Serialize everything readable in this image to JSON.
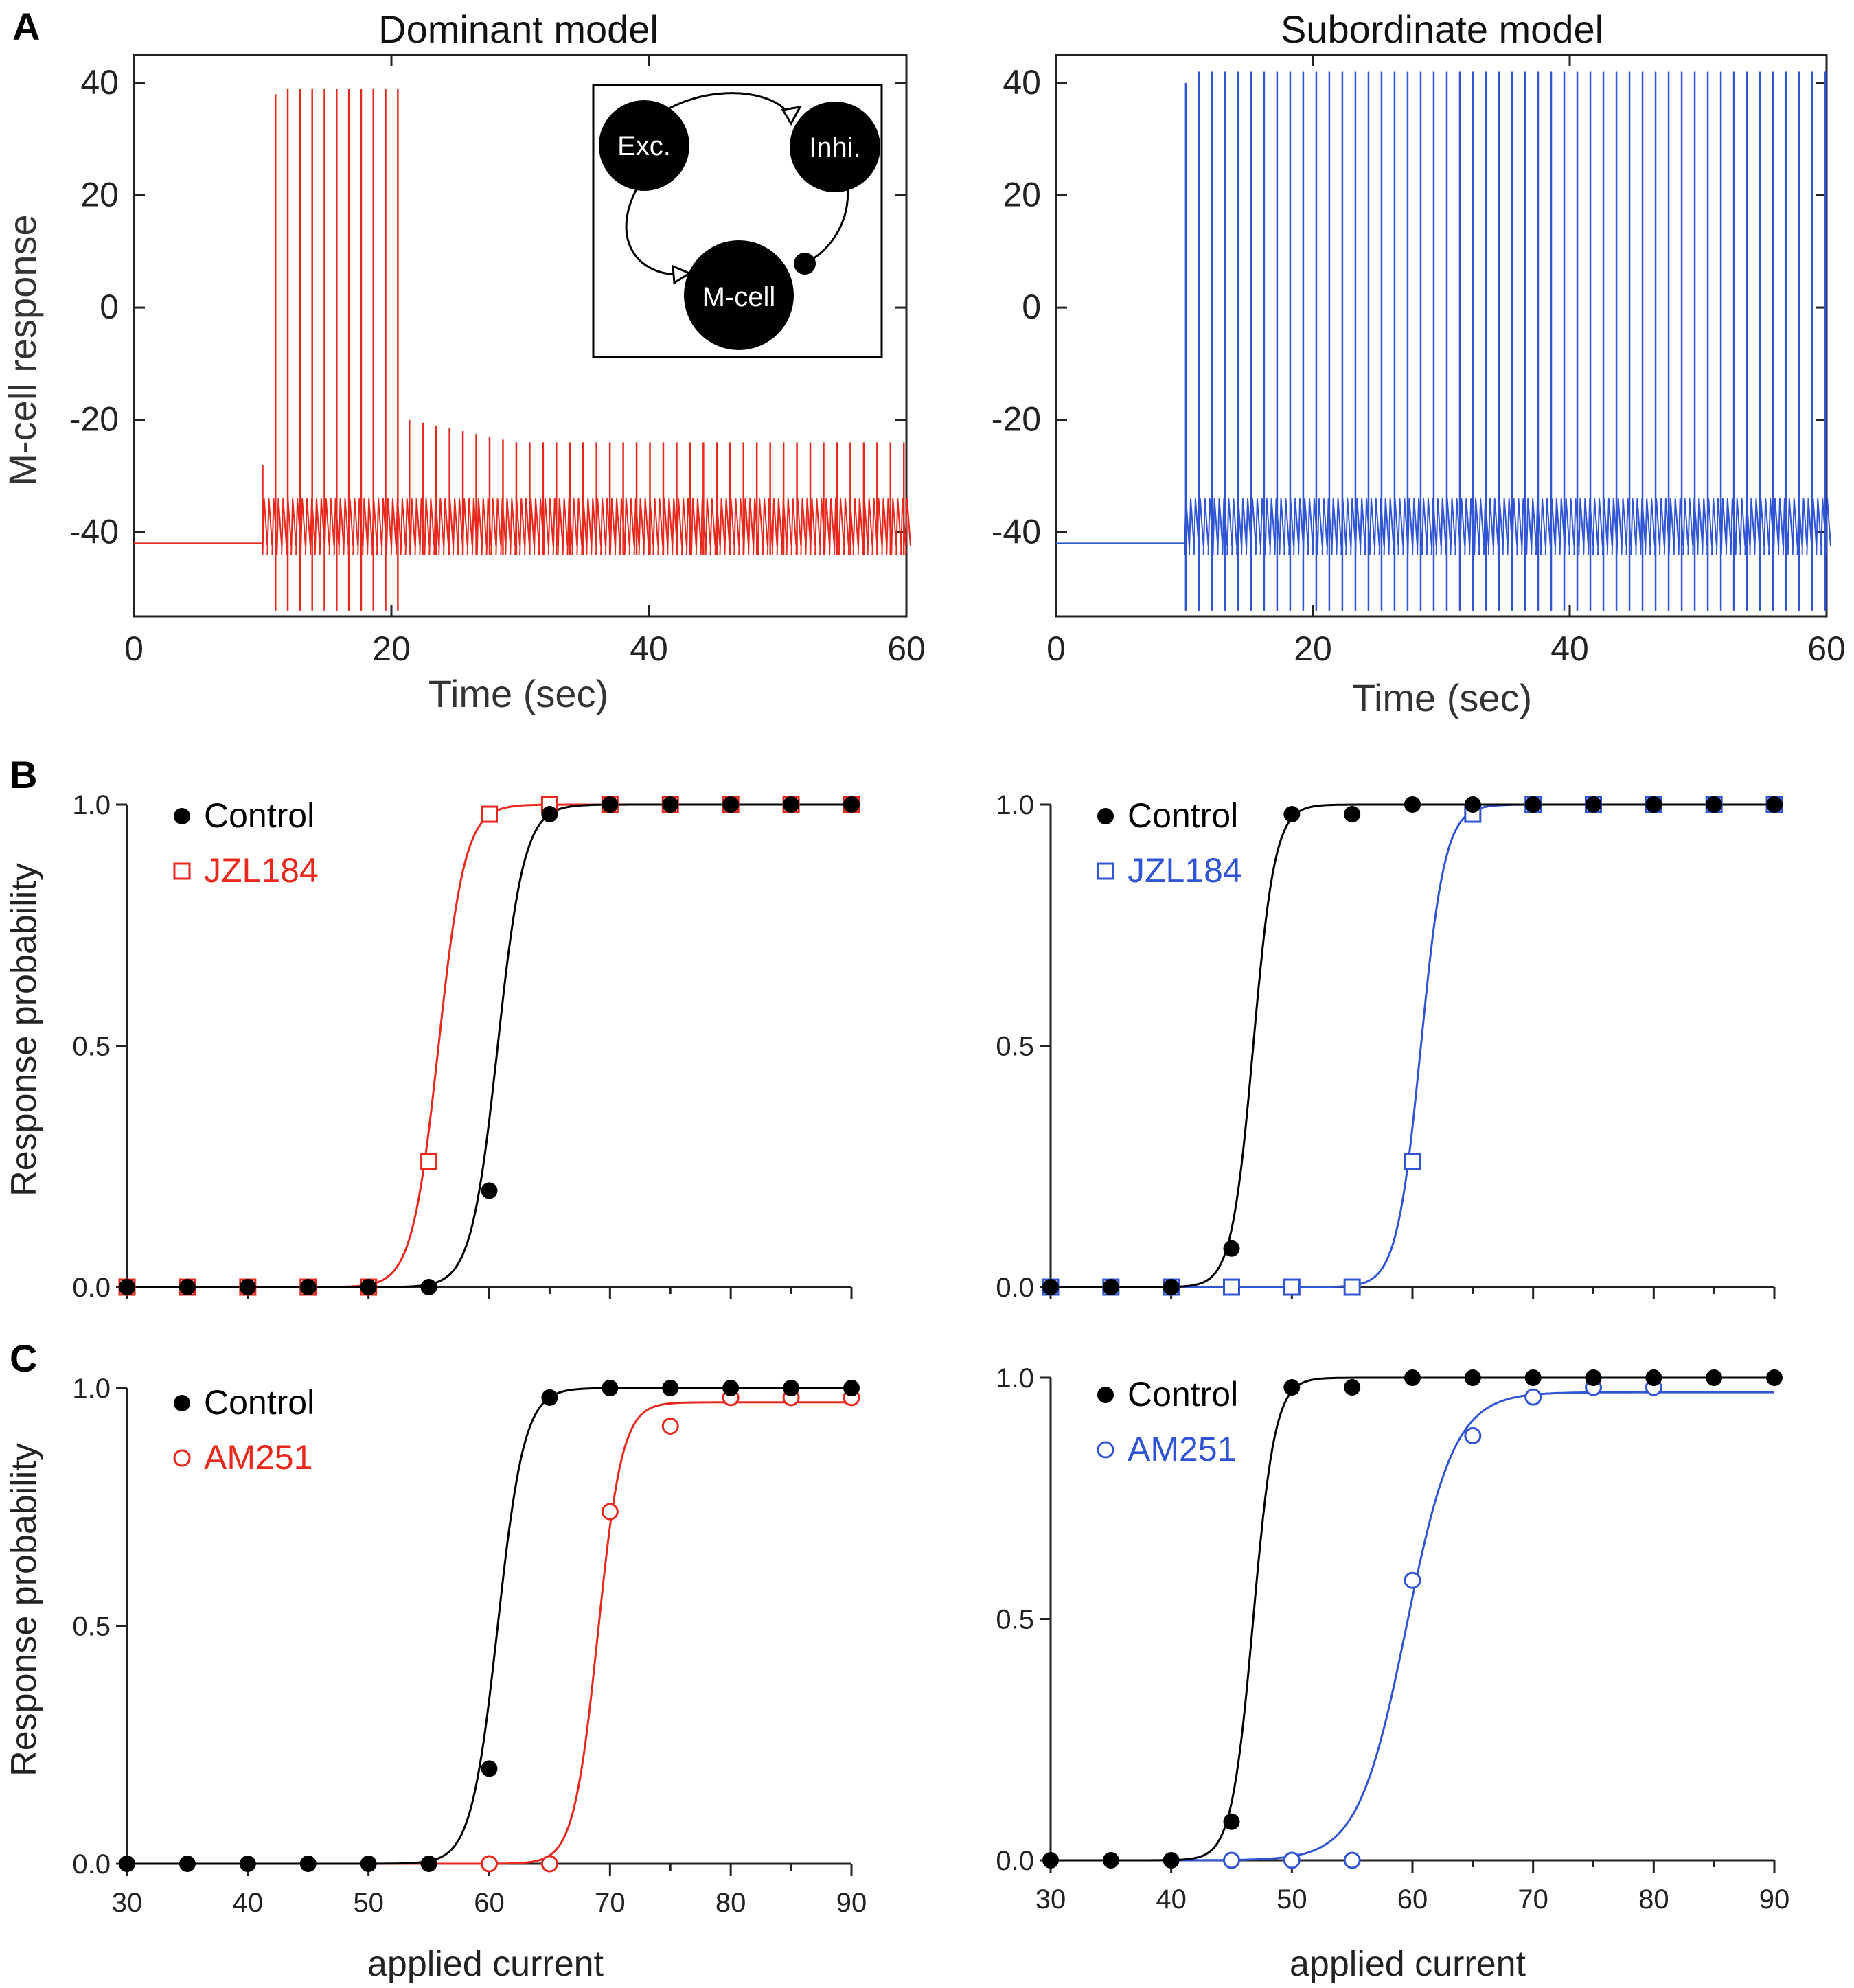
{
  "panel_letters": [
    "A",
    "B",
    "C"
  ],
  "colors": {
    "dominant": "#e8281c",
    "subordinate": "#2f55d4",
    "control": "#000000",
    "axis": "#222222"
  },
  "inset": {
    "nodes": [
      "Exc.",
      "Inhi.",
      "M-cell"
    ]
  },
  "chart_data": [
    {
      "id": "A-dominant",
      "type": "line",
      "title": "Dominant model",
      "xlabel": "Time (sec)",
      "ylabel": "M-cell response",
      "xlim": [
        0,
        60
      ],
      "ylim": [
        -55,
        45
      ],
      "xticks": [
        0,
        20,
        40,
        60
      ],
      "yticks": [
        40,
        20,
        0,
        -20,
        -40
      ],
      "trace": {
        "baseline": -42,
        "onset": 10,
        "burst_end": 20.5,
        "burst_peak": 39,
        "burst_trough": -54,
        "burst_count": 11,
        "attenuated_start_peak": -20,
        "attenuated_end_peak": -24,
        "attenuated_count": 38,
        "small_spike_top": -34,
        "small_spike_bottom": -44
      }
    },
    {
      "id": "A-subordinate",
      "type": "line",
      "title": "Subordinate model",
      "xlabel": "Time (sec)",
      "ylabel": "",
      "xlim": [
        0,
        60
      ],
      "ylim": [
        -55,
        45
      ],
      "xticks": [
        0,
        20,
        40,
        60
      ],
      "yticks": [
        40,
        20,
        0,
        -20,
        -40
      ],
      "trace": {
        "baseline": -42,
        "onset": 10,
        "spike_peak": 42,
        "spike_trough": -54,
        "spike_count": 50,
        "small_spike_top": -34,
        "small_spike_bottom": -44
      }
    },
    {
      "id": "B-dominant",
      "type": "scatter",
      "xlabel": "",
      "ylabel": "Response probability",
      "xlim": [
        30,
        90
      ],
      "ylim": [
        0,
        1
      ],
      "yticks": [
        "0.0",
        "0.5",
        "1.0"
      ],
      "series": [
        {
          "name": "Control",
          "marker": "filled-circle",
          "color": "#000000",
          "x": [
            30,
            35,
            40,
            45,
            50,
            55,
            60,
            65,
            70,
            75,
            80,
            85,
            90
          ],
          "y": [
            0,
            0,
            0,
            0,
            0,
            0,
            0.2,
            0.98,
            1,
            1,
            1,
            1,
            1
          ],
          "fit": {
            "x50": 60.7,
            "k": 1.1,
            "top": 1.0
          }
        },
        {
          "name": "JZL184",
          "marker": "open-square",
          "color": "#e8281c",
          "x": [
            30,
            35,
            40,
            45,
            50,
            55,
            60,
            65,
            70,
            75,
            80,
            85,
            90
          ],
          "y": [
            0,
            0,
            0,
            0,
            0,
            0.26,
            0.98,
            1,
            1,
            1,
            1,
            1,
            1
          ],
          "fit": {
            "x50": 55.8,
            "k": 1.1,
            "top": 1.0
          }
        }
      ]
    },
    {
      "id": "B-subordinate",
      "type": "scatter",
      "xlabel": "",
      "ylabel": "",
      "xlim": [
        30,
        90
      ],
      "ylim": [
        0,
        1
      ],
      "yticks": [
        "0.0",
        "0.5",
        "1.0"
      ],
      "series": [
        {
          "name": "Control",
          "marker": "filled-circle",
          "color": "#000000",
          "x": [
            30,
            35,
            40,
            45,
            50,
            55,
            60,
            65,
            70,
            75,
            80,
            85,
            90
          ],
          "y": [
            0,
            0,
            0,
            0.08,
            0.98,
            0.98,
            1,
            1,
            1,
            1,
            1,
            1,
            1
          ],
          "fit": {
            "x50": 46.8,
            "k": 0.9,
            "top": 1.0
          }
        },
        {
          "name": "JZL184",
          "marker": "open-square",
          "color": "#2f55d4",
          "x": [
            30,
            35,
            40,
            45,
            50,
            55,
            60,
            65,
            70,
            75,
            80,
            85,
            90
          ],
          "y": [
            0,
            0,
            0,
            0,
            0,
            0,
            0.26,
            0.98,
            1,
            1,
            1,
            1,
            1
          ],
          "fit": {
            "x50": 60.7,
            "k": 1.0,
            "top": 1.0
          }
        }
      ]
    },
    {
      "id": "C-dominant",
      "type": "scatter",
      "xlabel": "applied current",
      "ylabel": "Response probability",
      "xlim": [
        30,
        90
      ],
      "ylim": [
        0,
        1
      ],
      "xticks": [
        30,
        40,
        50,
        60,
        70,
        80,
        90
      ],
      "yticks": [
        "0.0",
        "0.5",
        "1.0"
      ],
      "series": [
        {
          "name": "Control",
          "marker": "filled-circle",
          "color": "#000000",
          "x": [
            30,
            35,
            40,
            45,
            50,
            55,
            60,
            65,
            70,
            75,
            80,
            85,
            90
          ],
          "y": [
            0,
            0,
            0,
            0,
            0,
            0,
            0.2,
            0.98,
            1,
            1,
            1,
            1,
            1
          ],
          "fit": {
            "x50": 60.7,
            "k": 1.1,
            "top": 1.0
          }
        },
        {
          "name": "AM251",
          "marker": "open-circle",
          "color": "#e8281c",
          "x": [
            60,
            65,
            70,
            75,
            80,
            85,
            90
          ],
          "y": [
            0,
            0,
            0.74,
            0.92,
            0.98,
            0.98,
            0.98
          ],
          "fit": {
            "x50": 69.0,
            "k": 1.0,
            "top": 0.97
          }
        }
      ]
    },
    {
      "id": "C-subordinate",
      "type": "scatter",
      "xlabel": "applied current",
      "ylabel": "",
      "xlim": [
        30,
        90
      ],
      "ylim": [
        0,
        1
      ],
      "xticks": [
        30,
        40,
        50,
        60,
        70,
        80,
        90
      ],
      "yticks": [
        "0.0",
        "0.5",
        "1.0"
      ],
      "series": [
        {
          "name": "Control",
          "marker": "filled-circle",
          "color": "#000000",
          "x": [
            30,
            35,
            40,
            45,
            50,
            55,
            60,
            65,
            70,
            75,
            80,
            85,
            90
          ],
          "y": [
            0,
            0,
            0,
            0.08,
            0.98,
            0.98,
            1,
            1,
            1,
            1,
            1,
            1,
            1
          ],
          "fit": {
            "x50": 46.8,
            "k": 0.9,
            "top": 1.0
          }
        },
        {
          "name": "AM251",
          "marker": "open-circle",
          "color": "#2f55d4",
          "x": [
            45,
            50,
            55,
            60,
            65,
            70,
            75,
            80
          ],
          "y": [
            0,
            0,
            0,
            0.58,
            0.88,
            0.96,
            0.98,
            0.98
          ],
          "fit": {
            "x50": 59.5,
            "k": 2.0,
            "top": 0.97
          }
        }
      ]
    }
  ]
}
